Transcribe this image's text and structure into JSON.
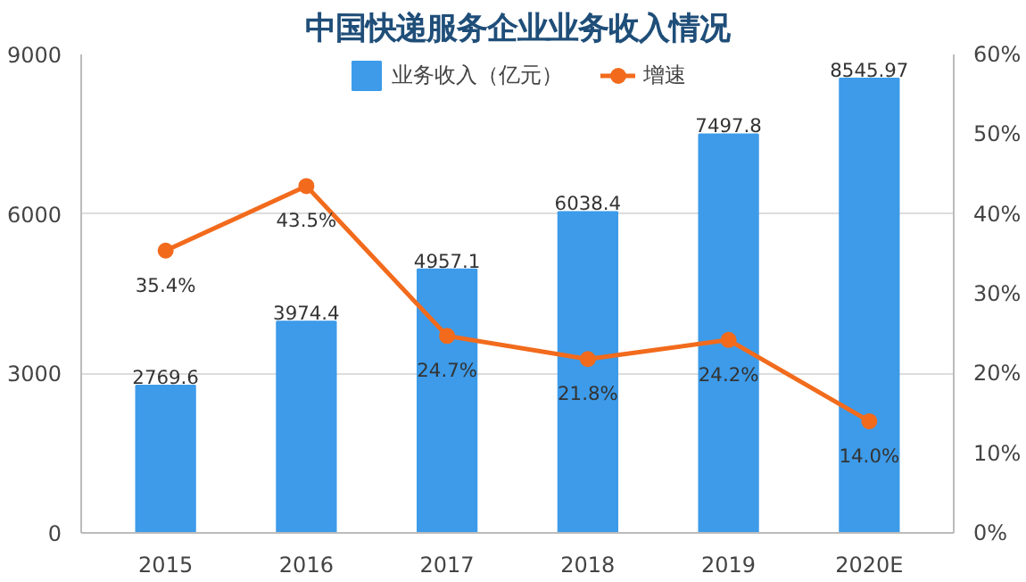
{
  "chart_data": {
    "type": "bar",
    "title": "中国快递服务企业业务收入情况",
    "categories": [
      "2015",
      "2016",
      "2017",
      "2018",
      "2019",
      "2020E"
    ],
    "series": [
      {
        "name": "业务收入（亿元）",
        "color": "#3d9be9",
        "values": [
          2769.6,
          3974.4,
          4957.1,
          6038.4,
          7497.8,
          8545.97
        ],
        "value_labels": [
          "2769.6",
          "3974.4",
          "4957.1",
          "6038.4",
          "7497.8",
          "8545.97"
        ]
      },
      {
        "name": "增速",
        "type": "line",
        "axis": "y2",
        "color": "#f26b1d",
        "values": [
          35.4,
          43.5,
          24.7,
          21.8,
          24.2,
          14.0
        ],
        "value_labels": [
          "35.4%",
          "43.5%",
          "24.7%",
          "21.8%",
          "24.2%",
          "14.0%"
        ]
      }
    ],
    "ylim": [
      0,
      9000
    ],
    "yticks": [
      0,
      3000,
      6000,
      9000
    ],
    "y2lim": [
      0,
      60
    ],
    "y2ticks": [
      {
        "value": 0,
        "label": "0%"
      },
      {
        "value": 10,
        "label": "10%"
      },
      {
        "value": 20,
        "label": "20%"
      },
      {
        "value": 30,
        "label": "30%"
      },
      {
        "value": 40,
        "label": "40%"
      },
      {
        "value": 50,
        "label": "50%"
      },
      {
        "value": 60,
        "label": "60%"
      }
    ],
    "grid": "y",
    "legend": "top",
    "marker": "circle"
  }
}
